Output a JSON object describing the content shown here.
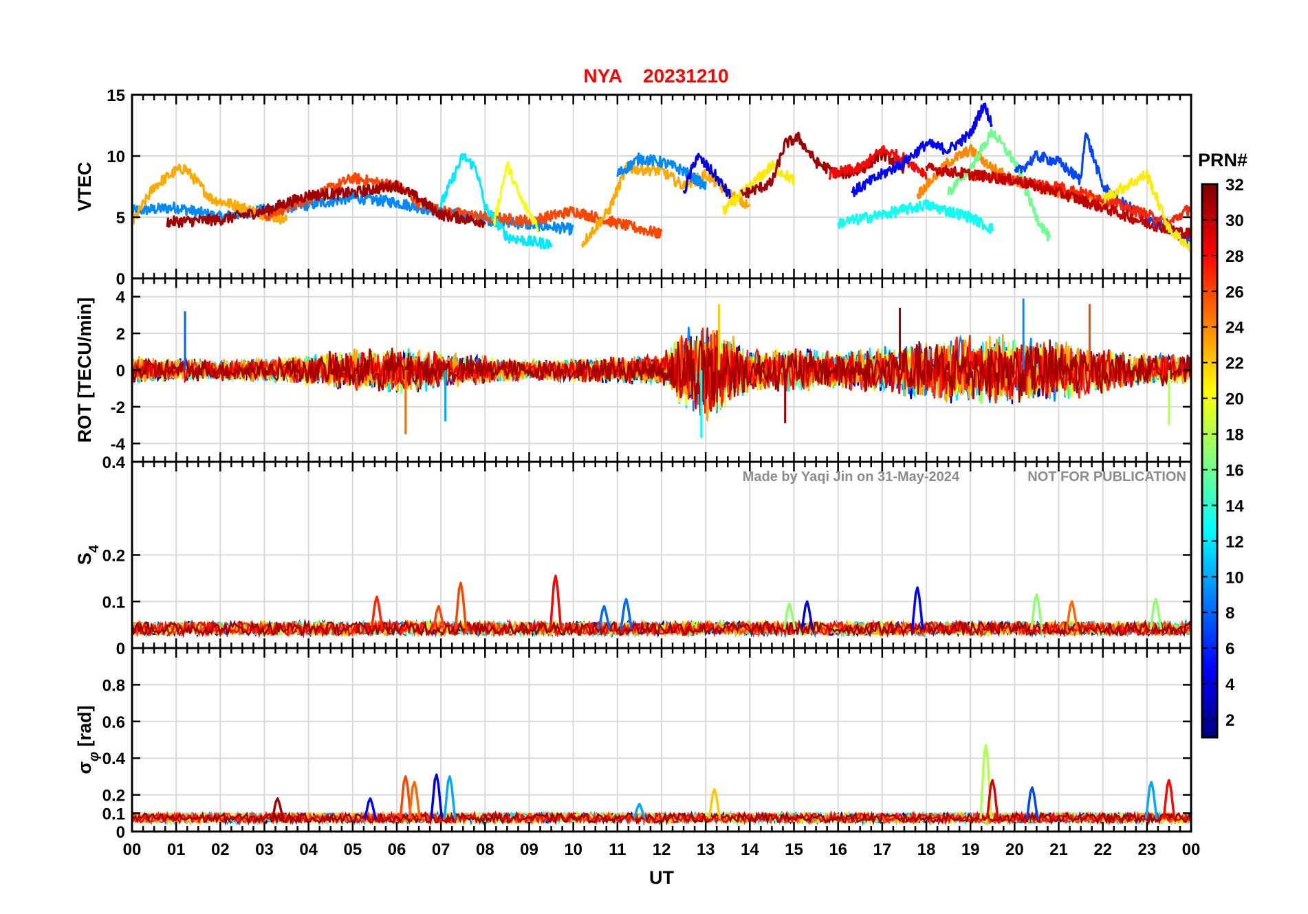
{
  "figure": {
    "title_station": "NYA",
    "title_date": "20231210",
    "title_color": "#ff0000",
    "watermark_author": "Made by Yaqi Jin on 31-May-2024",
    "watermark_notice": "NOT FOR PUBLICATION",
    "watermark_color": "#8c8c8c"
  },
  "colorbar": {
    "label": "PRN#",
    "ticks": [
      "2",
      "4",
      "6",
      "8",
      "10",
      "12",
      "14",
      "16",
      "18",
      "20",
      "22",
      "24",
      "26",
      "28",
      "30",
      "32"
    ],
    "colormap": "jet",
    "range": [
      1,
      32
    ],
    "colors": [
      "#00007f",
      "#0000ff",
      "#007fff",
      "#00ffff",
      "#7fff7f",
      "#ffff00",
      "#ff7f00",
      "#ff0000",
      "#7f0000"
    ]
  },
  "chart_data": [
    {
      "type": "line",
      "ylabel": "VTEC",
      "xlabel": "",
      "ylim": [
        0,
        15
      ],
      "yticks": [
        0,
        5,
        10,
        15
      ],
      "ytick_labels": [
        "0",
        "5",
        "10",
        "15"
      ],
      "xlim": [
        0,
        24
      ],
      "grid": true,
      "series_note": "multiple satellites colored by PRN",
      "series": [
        {
          "prn": 9,
          "x": [
            0,
            1,
            2,
            3,
            4,
            5,
            6,
            7,
            8,
            9,
            10
          ],
          "y": [
            5.5,
            5.8,
            5.0,
            5.6,
            6.0,
            6.6,
            6.2,
            5.4,
            4.8,
            4.4,
            4.0
          ]
        },
        {
          "prn": 23,
          "x": [
            0,
            0.5,
            1,
            1.2,
            1.8,
            2.5,
            3,
            3.5
          ],
          "y": [
            4.5,
            7.5,
            8.8,
            9.0,
            6.5,
            5.8,
            5.2,
            4.8
          ]
        },
        {
          "prn": 26,
          "x": [
            3,
            4,
            5,
            5.6,
            6,
            6.5,
            7,
            8,
            9,
            10,
            11,
            12
          ],
          "y": [
            5.0,
            6.5,
            8.2,
            7.8,
            7.6,
            6.2,
            5.5,
            5.0,
            4.7,
            5.5,
            4.5,
            3.6
          ]
        },
        {
          "prn": 31,
          "x": [
            0.8,
            2,
            3,
            4,
            5,
            6,
            6.5,
            7,
            8
          ],
          "y": [
            4.6,
            4.8,
            5.5,
            6.8,
            7.0,
            7.6,
            6.5,
            5.2,
            4.6
          ]
        },
        {
          "prn": 12,
          "x": [
            7,
            7.5,
            7.8,
            8,
            8.5,
            9,
            9.5
          ],
          "y": [
            6.0,
            10.0,
            9.0,
            5.8,
            3.4,
            3.0,
            2.8
          ]
        },
        {
          "prn": 20,
          "x": [
            8.2,
            8.5,
            8.8,
            9.2
          ],
          "y": [
            4.5,
            9.3,
            6.5,
            4.2
          ]
        },
        {
          "prn": 23,
          "x": [
            10.2,
            10.8,
            11.2,
            12,
            12.5,
            13,
            13.5,
            14
          ],
          "y": [
            2.8,
            5.5,
            9.0,
            8.8,
            7.5,
            8.5,
            7.0,
            5.8
          ]
        },
        {
          "prn": 9,
          "x": [
            11,
            11.5,
            12,
            12.5,
            13
          ],
          "y": [
            8.5,
            9.8,
            9.5,
            8.8,
            7.5
          ]
        },
        {
          "prn": 4,
          "x": [
            12.5,
            12.8,
            13.2,
            13.6
          ],
          "y": [
            7.0,
            10.0,
            8.5,
            6.5
          ]
        },
        {
          "prn": 21,
          "x": [
            13.4,
            14,
            14.5,
            15
          ],
          "y": [
            5.5,
            7.5,
            9.2,
            8.0
          ]
        },
        {
          "prn": 31,
          "x": [
            13.8,
            14.5,
            14.8,
            15.1,
            15.5,
            16,
            16.5,
            17,
            17.5
          ],
          "y": [
            6.8,
            7.8,
            11.0,
            11.5,
            9.5,
            8.5,
            8.8,
            10.2,
            9.0
          ]
        },
        {
          "prn": 28,
          "x": [
            15.8,
            16.5,
            17,
            17.5,
            18
          ],
          "y": [
            8.5,
            9.0,
            10.5,
            9.8,
            8.5
          ]
        },
        {
          "prn": 5,
          "x": [
            16.3,
            17,
            17.5,
            18,
            18.5,
            19,
            19.3,
            19.5
          ],
          "y": [
            7.0,
            8.5,
            9.5,
            11.0,
            10.5,
            11.8,
            14.2,
            12.5
          ]
        },
        {
          "prn": 24,
          "x": [
            17.8,
            18.5,
            19,
            19.5,
            20,
            20.5,
            21,
            22
          ],
          "y": [
            6.8,
            9.5,
            10.5,
            9.0,
            8.0,
            7.5,
            7.0,
            6.3
          ]
        },
        {
          "prn": 16,
          "x": [
            18.5,
            19,
            19.5,
            20,
            20.5,
            20.8
          ],
          "y": [
            7.0,
            9.0,
            12.0,
            9.5,
            5.0,
            3.2
          ]
        },
        {
          "prn": 7,
          "x": [
            20,
            20.5,
            21,
            21.5,
            21.6,
            22,
            22.5,
            23,
            24
          ],
          "y": [
            8.5,
            10.0,
            9.5,
            8.0,
            12.0,
            7.5,
            6.0,
            5.0,
            3.0
          ]
        },
        {
          "prn": 27,
          "x": [
            19,
            20,
            21,
            22,
            22.5,
            23,
            23.5,
            24
          ],
          "y": [
            8.5,
            8.0,
            7.5,
            6.5,
            5.8,
            5.2,
            4.5,
            5.8
          ]
        },
        {
          "prn": 30,
          "x": [
            18,
            19,
            20,
            21,
            22,
            23,
            24
          ],
          "y": [
            9.0,
            8.5,
            8.0,
            7.0,
            5.8,
            4.5,
            3.6
          ]
        },
        {
          "prn": 21,
          "x": [
            22,
            22.5,
            23,
            23.5,
            24
          ],
          "y": [
            6.5,
            7.5,
            8.5,
            4.0,
            2.5
          ]
        },
        {
          "prn": 13,
          "x": [
            16,
            17,
            18,
            19,
            19.5
          ],
          "y": [
            4.5,
            5.2,
            6.0,
            5.0,
            4.0
          ]
        }
      ]
    },
    {
      "type": "line",
      "ylabel": "ROT [TECU/min]",
      "xlabel": "",
      "ylim": [
        -5,
        5
      ],
      "yticks": [
        -4,
        -2,
        0,
        2,
        4
      ],
      "ytick_labels": [
        "-4",
        "-2",
        "0",
        "2",
        "4"
      ],
      "xlim": [
        0,
        24
      ],
      "grid": true,
      "envelope": {
        "x": [
          0,
          1,
          2,
          3,
          4,
          5,
          6,
          7,
          8,
          9,
          10,
          11,
          12,
          12.5,
          13,
          13.5,
          14,
          15,
          16,
          17,
          18,
          19,
          20,
          21,
          22,
          23,
          24
        ],
        "amplitude": [
          0.8,
          0.7,
          0.6,
          0.7,
          0.9,
          1.2,
          1.4,
          1.1,
          0.8,
          0.6,
          0.7,
          0.8,
          0.9,
          2.2,
          3.0,
          2.2,
          1.2,
          1.3,
          1.1,
          1.4,
          1.8,
          2.0,
          2.0,
          1.8,
          1.3,
          0.9,
          0.9
        ]
      },
      "spikes": [
        {
          "x": 1.2,
          "y": 3.2
        },
        {
          "x": 6.2,
          "y": -3.5
        },
        {
          "x": 7.1,
          "y": -2.8
        },
        {
          "x": 12.9,
          "y": -3.7
        },
        {
          "x": 13.3,
          "y": 3.6
        },
        {
          "x": 14.8,
          "y": -2.9
        },
        {
          "x": 17.4,
          "y": 3.4
        },
        {
          "x": 20.2,
          "y": 3.9
        },
        {
          "x": 21.7,
          "y": 3.6
        },
        {
          "x": 23.5,
          "y": -3.0
        }
      ]
    },
    {
      "type": "line",
      "ylabel": "S",
      "ylabel_sub": "4",
      "xlabel": "",
      "ylim": [
        0,
        0.4
      ],
      "yticks": [
        0,
        0.1,
        0.2,
        0.4
      ],
      "ytick_labels": [
        "0",
        "0.1",
        "0.2",
        "0.4"
      ],
      "xlim": [
        0,
        24
      ],
      "grid": true,
      "baseline": 0.04,
      "peaks": [
        {
          "x": 5.55,
          "y": 0.11,
          "prn": 27
        },
        {
          "x": 6.95,
          "y": 0.09,
          "prn": 26
        },
        {
          "x": 7.45,
          "y": 0.14,
          "prn": 26
        },
        {
          "x": 9.6,
          "y": 0.155,
          "prn": 28
        },
        {
          "x": 10.7,
          "y": 0.09,
          "prn": 8
        },
        {
          "x": 11.2,
          "y": 0.105,
          "prn": 8
        },
        {
          "x": 14.9,
          "y": 0.095,
          "prn": 17
        },
        {
          "x": 15.3,
          "y": 0.1,
          "prn": 4
        },
        {
          "x": 17.8,
          "y": 0.13,
          "prn": 5
        },
        {
          "x": 20.5,
          "y": 0.115,
          "prn": 17
        },
        {
          "x": 21.3,
          "y": 0.1,
          "prn": 25
        },
        {
          "x": 23.2,
          "y": 0.105,
          "prn": 17
        }
      ]
    },
    {
      "type": "line",
      "ylabel": "σ",
      "ylabel_sub": "φ",
      "ylabel_suffix": " [rad]",
      "xlabel": "UT",
      "ylim": [
        0,
        1
      ],
      "yticks": [
        0,
        0.1,
        0.2,
        0.4,
        0.6,
        0.8
      ],
      "ytick_labels": [
        "0",
        "0.1",
        "0.2",
        "0.4",
        "0.6",
        "0.8"
      ],
      "xlim": [
        0,
        24
      ],
      "xticks": [
        0,
        1,
        2,
        3,
        4,
        5,
        6,
        7,
        8,
        9,
        10,
        11,
        12,
        13,
        14,
        15,
        16,
        17,
        18,
        19,
        20,
        21,
        22,
        23,
        24
      ],
      "xtick_labels": [
        "00",
        "01",
        "02",
        "03",
        "04",
        "05",
        "06",
        "07",
        "08",
        "09",
        "10",
        "11",
        "12",
        "13",
        "14",
        "15",
        "16",
        "17",
        "18",
        "19",
        "20",
        "21",
        "22",
        "23",
        "00"
      ],
      "grid": true,
      "baseline": 0.07,
      "peaks": [
        {
          "x": 3.3,
          "y": 0.18,
          "prn": 31
        },
        {
          "x": 5.4,
          "y": 0.18,
          "prn": 5
        },
        {
          "x": 6.2,
          "y": 0.3,
          "prn": 26
        },
        {
          "x": 6.4,
          "y": 0.27,
          "prn": 25
        },
        {
          "x": 6.9,
          "y": 0.31,
          "prn": 4
        },
        {
          "x": 7.2,
          "y": 0.3,
          "prn": 10
        },
        {
          "x": 11.5,
          "y": 0.15,
          "prn": 10
        },
        {
          "x": 13.2,
          "y": 0.23,
          "prn": 22
        },
        {
          "x": 19.35,
          "y": 0.47,
          "prn": 18
        },
        {
          "x": 19.5,
          "y": 0.28,
          "prn": 29
        },
        {
          "x": 20.4,
          "y": 0.24,
          "prn": 7
        },
        {
          "x": 23.1,
          "y": 0.27,
          "prn": 10
        },
        {
          "x": 23.5,
          "y": 0.28,
          "prn": 28
        }
      ]
    }
  ]
}
